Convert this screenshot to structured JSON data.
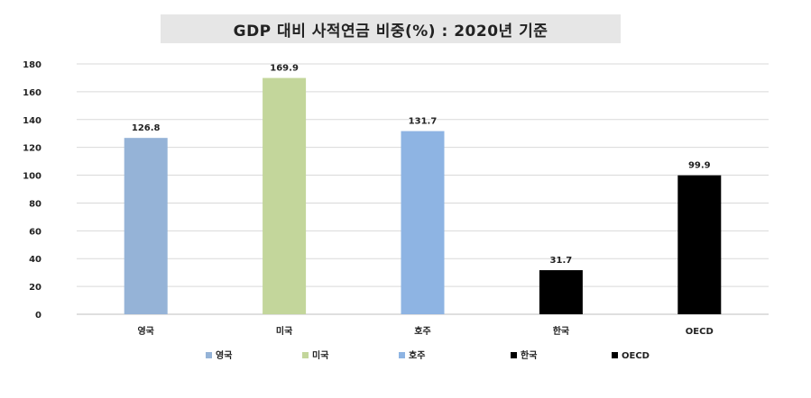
{
  "chart_data": {
    "type": "bar",
    "title": "GDP 대비 사적연금 비중(%) : 2020년 기준",
    "categories": [
      "영국",
      "미국",
      "호주",
      "한국",
      "OECD"
    ],
    "values": [
      126.8,
      169.9,
      131.7,
      31.7,
      99.9
    ],
    "colors": [
      "#95b3d7",
      "#c3d69b",
      "#8eb4e3",
      "#000000",
      "#000000"
    ],
    "ylim": [
      0,
      180
    ],
    "yticks": [
      0,
      20,
      40,
      60,
      80,
      100,
      120,
      140,
      160,
      180
    ],
    "grid": true,
    "legend_position": "bottom",
    "xlabel": "",
    "ylabel": ""
  }
}
